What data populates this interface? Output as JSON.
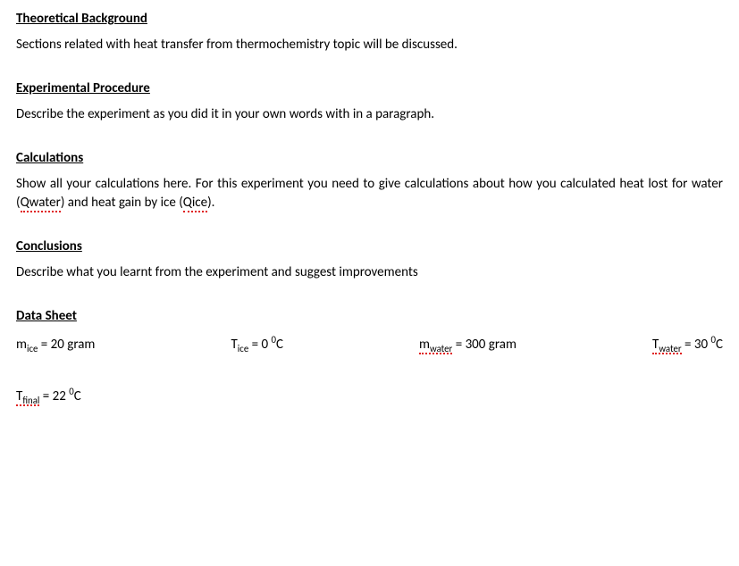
{
  "sections": {
    "theoretical": {
      "heading": "Theoretical Background",
      "body": "Sections related with heat transfer from thermochemistry topic will be discussed."
    },
    "procedure": {
      "heading": "Experimental Procedure",
      "body": "Describe the experiment as you did it in your own words with in a paragraph."
    },
    "calculations": {
      "heading": "Calculations",
      "body_pre": "Show all your calculations here. For this experiment you need to give calculations about how you calculated heat lost for water (",
      "q_water": "Qwater",
      "body_mid": ") and heat gain by ice (",
      "q_ice": "Qice",
      "body_post": ")."
    },
    "conclusions": {
      "heading": "Conclusions",
      "body": "Describe what you learnt from the experiment and suggest improvements"
    },
    "datasheet": {
      "heading": "Data Sheet",
      "m_ice": {
        "sym": "m",
        "sub": "ice",
        "eq": " = 20 gram"
      },
      "t_ice": {
        "sym": "T",
        "sub": "ice",
        "eq_pre": " = 0 ",
        "deg": "0",
        "unit": "C"
      },
      "m_water": {
        "sym": "m",
        "sub": "water",
        "eq": " = 300 gram"
      },
      "t_water": {
        "sym": "T",
        "sub": "water",
        "eq_pre": " = 30 ",
        "deg": "0",
        "unit": "C"
      },
      "t_final": {
        "sym": "T",
        "sub": "final",
        "eq_pre": " = 22 ",
        "deg": "0",
        "unit": "C"
      }
    }
  },
  "style": {
    "font_family": "Calibri",
    "font_size_pt": 11,
    "text_color": "#000000",
    "background_color": "#ffffff",
    "spellcheck_underline_color": "#e02020"
  }
}
